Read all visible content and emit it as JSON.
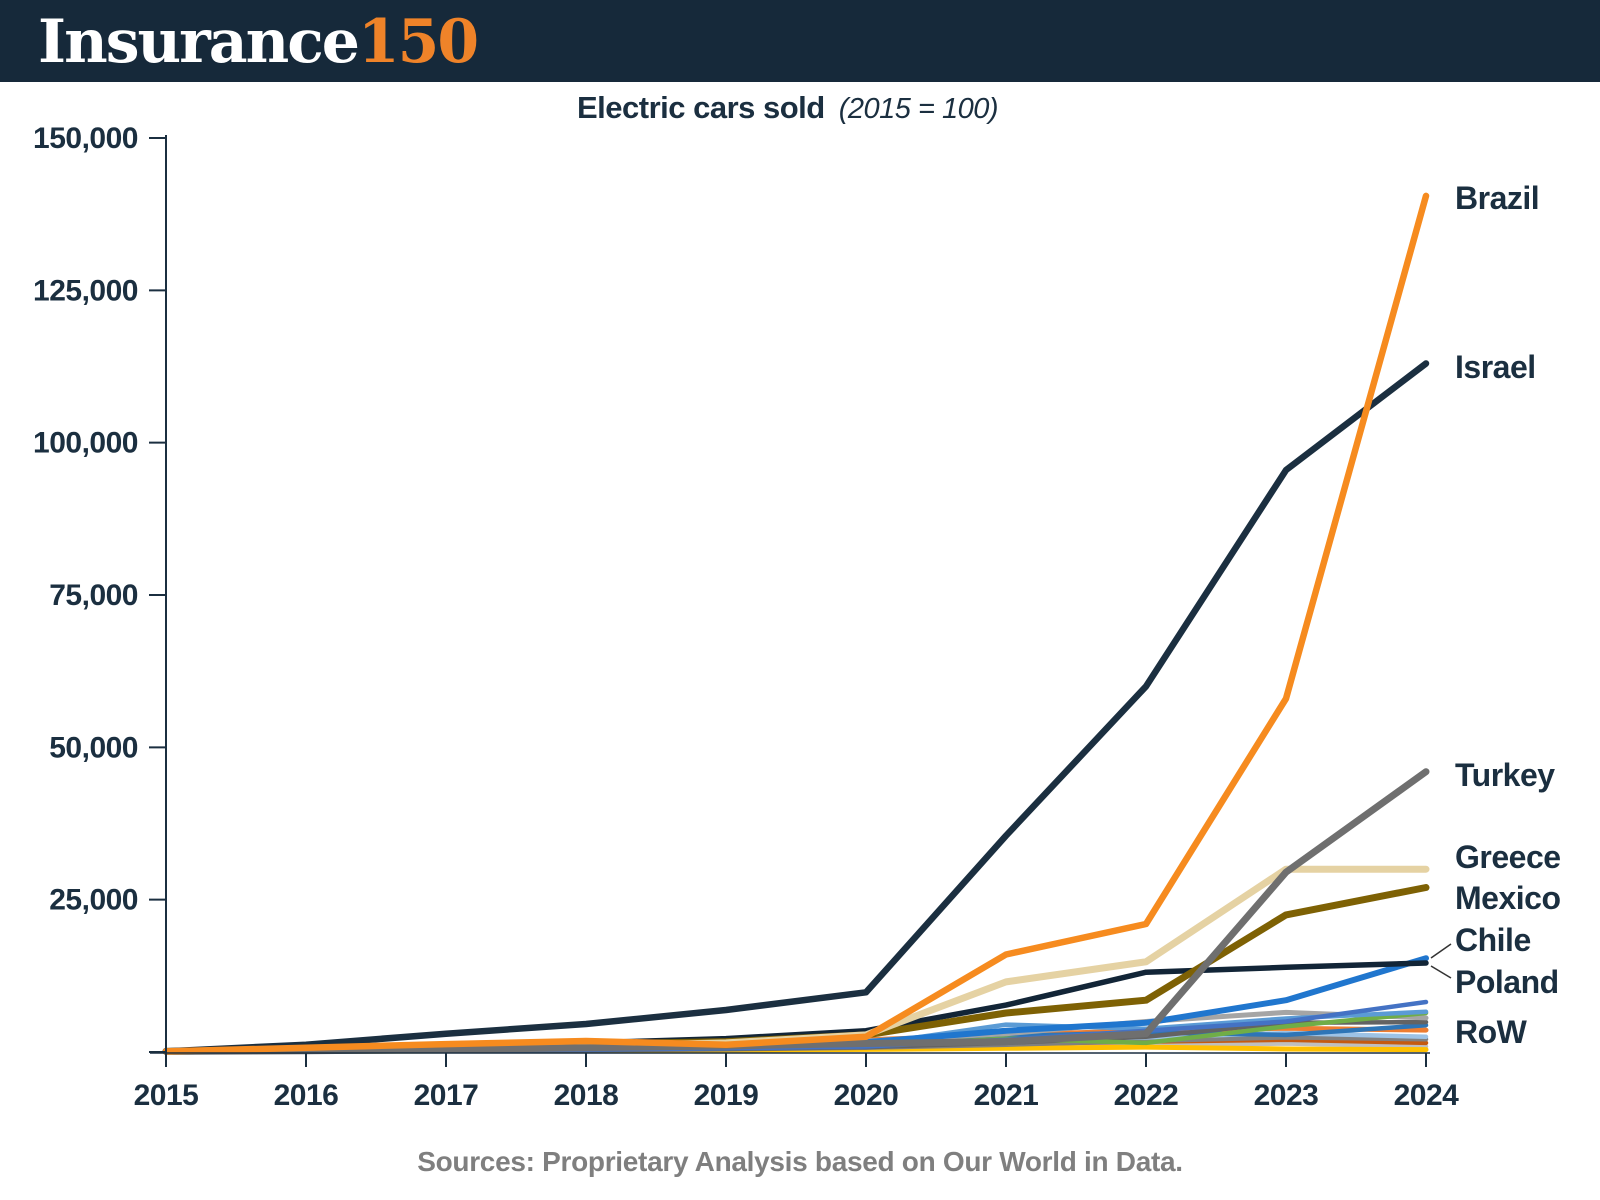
{
  "header": {
    "logo_text": "Insurance",
    "logo_number": "150",
    "bg_color": "#16293a",
    "logo_text_color": "#ffffff",
    "logo_number_color": "#ef8329"
  },
  "title": {
    "main": "Electric cars sold",
    "subtitle": "(2015 = 100)"
  },
  "footer": {
    "text": "Sources: Proprietary Analysis based on Our World in Data."
  },
  "chart_data": {
    "type": "line",
    "title": "Electric cars sold",
    "subtitle": "(2015 = 100)",
    "xlabel": "",
    "ylabel": "",
    "x": [
      2015,
      2016,
      2017,
      2018,
      2019,
      2020,
      2021,
      2022,
      2023,
      2024
    ],
    "ylim": [
      0,
      150000
    ],
    "grid": false,
    "legend_position": "right-end-labels",
    "axis_color": "#1b2f40",
    "y_ticks": [
      {
        "value": 150000,
        "label": "150,000"
      },
      {
        "value": 125000,
        "label": "125,000"
      },
      {
        "value": 100000,
        "label": "100,000"
      },
      {
        "value": 75000,
        "label": "75,000"
      },
      {
        "value": 50000,
        "label": "50,000"
      },
      {
        "value": 25000,
        "label": "25,000"
      },
      {
        "value": 0,
        "label": ""
      }
    ],
    "right_labels": [
      "Brazil",
      "Israel",
      "Turkey",
      "Greece",
      "Mexico",
      "Chile",
      "Poland",
      "RoW"
    ],
    "series": [
      {
        "id": "row-lightgray",
        "name": "RoW member",
        "color": "#bfbfbf",
        "width": 4.5,
        "values": [
          100,
          130,
          180,
          250,
          350,
          500,
          800,
          1100,
          1400,
          900
        ]
      },
      {
        "id": "row-yellow",
        "name": "RoW member",
        "color": "#ffc000",
        "width": 5,
        "values": [
          100,
          120,
          160,
          220,
          300,
          420,
          600,
          800,
          500,
          400
        ]
      },
      {
        "id": "row-darkorange",
        "name": "RoW member",
        "color": "#c55a11",
        "width": 4.5,
        "values": [
          100,
          180,
          280,
          420,
          600,
          850,
          1300,
          1700,
          2000,
          1500
        ]
      },
      {
        "id": "row-midgray",
        "name": "RoW member",
        "color": "#808080",
        "width": 4.5,
        "values": [
          100,
          140,
          200,
          300,
          450,
          700,
          1200,
          1800,
          2400,
          2100
        ]
      },
      {
        "id": "row-paleblue",
        "name": "RoW member",
        "color": "#9dc3e6",
        "width": 4.5,
        "values": [
          100,
          160,
          260,
          420,
          650,
          950,
          1700,
          2400,
          3100,
          2500
        ]
      },
      {
        "id": "row-orange",
        "name": "RoW member",
        "color": "#ed7d31",
        "width": 5,
        "values": [
          100,
          300,
          500,
          900,
          1400,
          2000,
          2800,
          3500,
          3900,
          3600
        ]
      },
      {
        "id": "row-steelblue",
        "name": "RoW member",
        "color": "#2e75b6",
        "width": 4.5,
        "values": [
          100,
          220,
          380,
          600,
          900,
          1400,
          2600,
          3200,
          2800,
          4400
        ]
      },
      {
        "id": "row-darkgray",
        "name": "RoW member",
        "color": "#636363",
        "width": 4.5,
        "values": [
          100,
          150,
          220,
          350,
          500,
          800,
          1500,
          2500,
          4800,
          4900
        ]
      },
      {
        "id": "row-gray",
        "name": "RoW member",
        "color": "#a5a5a5",
        "width": 5,
        "values": [
          100,
          250,
          400,
          700,
          1100,
          1800,
          3000,
          5000,
          6500,
          5600
        ]
      },
      {
        "id": "row-green",
        "name": "RoW member",
        "color": "#70ad47",
        "width": 4.5,
        "values": [
          100,
          180,
          300,
          450,
          700,
          1000,
          2200,
          1500,
          4200,
          6400
        ]
      },
      {
        "id": "row-lightblue",
        "name": "RoW member",
        "color": "#5b9bd5",
        "width": 4.5,
        "values": [
          100,
          200,
          350,
          500,
          800,
          1200,
          4500,
          3800,
          5500,
          6600
        ]
      },
      {
        "id": "row-royalblue",
        "name": "RoW member",
        "color": "#4472c4",
        "width": 4.5,
        "values": [
          100,
          150,
          250,
          400,
          600,
          900,
          2000,
          3500,
          5000,
          8200
        ]
      },
      {
        "id": "chile",
        "name": "Chile",
        "color": "#2076ce",
        "width": 6,
        "values": [
          100,
          300,
          500,
          800,
          1100,
          1600,
          3500,
          4800,
          8500,
          15400
        ]
      },
      {
        "id": "poland",
        "name": "Poland",
        "color": "#122537",
        "width": 5.5,
        "values": [
          100,
          400,
          900,
          1500,
          2200,
          3500,
          7700,
          13100,
          13900,
          14600
        ]
      },
      {
        "id": "mexico",
        "name": "Mexico",
        "color": "#7e6104",
        "width": 7,
        "values": [
          100,
          400,
          900,
          1300,
          1700,
          2800,
          6400,
          8500,
          22500,
          27000
        ]
      },
      {
        "id": "greece",
        "name": "Greece",
        "color": "#e5d2a3",
        "width": 7,
        "values": [
          100,
          300,
          600,
          1000,
          1500,
          2800,
          11500,
          14800,
          30000,
          30000
        ]
      },
      {
        "id": "turkey",
        "name": "Turkey",
        "color": "#6f6f6f",
        "width": 7,
        "values": [
          100,
          200,
          400,
          700,
          1000,
          1400,
          1700,
          3000,
          29500,
          46000
        ]
      },
      {
        "id": "israel",
        "name": "Israel",
        "color": "#1b2f40",
        "width": 6.5,
        "values": [
          100,
          1200,
          3000,
          4600,
          6900,
          9800,
          35500,
          60000,
          95500,
          113000
        ]
      },
      {
        "id": "brazil",
        "name": "Brazil",
        "color": "#f68b1f",
        "width": 6.5,
        "values": [
          100,
          700,
          1300,
          1800,
          1200,
          2500,
          16000,
          21000,
          58000,
          140500
        ]
      }
    ]
  }
}
